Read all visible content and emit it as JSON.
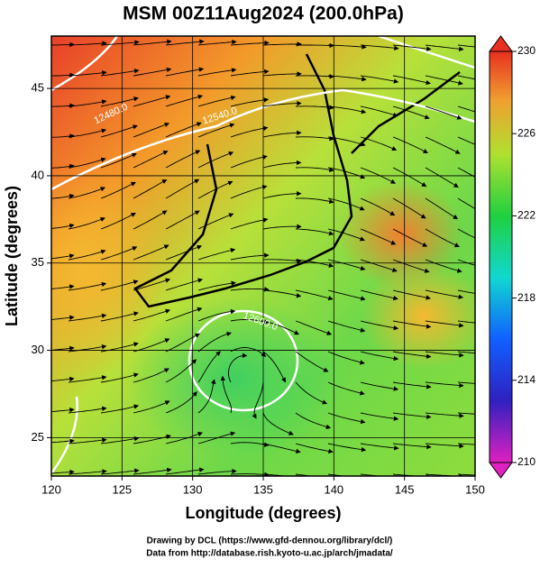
{
  "title": "MSM 00Z11Aug2024 (200.0hPa)",
  "xaxis": {
    "label": "Longitude (degrees)",
    "lim": [
      120,
      150
    ],
    "ticks": [
      120,
      125,
      130,
      135,
      140,
      145,
      150
    ]
  },
  "yaxis": {
    "label": "Latitude  (degrees)",
    "lim": [
      22.8,
      48
    ],
    "ticks": [
      25,
      30,
      35,
      40,
      45
    ]
  },
  "colorbar": {
    "lim": [
      210,
      230
    ],
    "ticks": [
      210,
      214,
      218,
      222,
      226,
      230
    ]
  },
  "contour_labels": [
    "12480.0",
    "12540.0",
    "12600.0"
  ],
  "credits": [
    "Drawing by DCL (https://www.gfd-dennou.org/library/dcl/)",
    "Data from http://database.rish.kyoto-u.ac.jp/arch/jmadata/"
  ]
}
